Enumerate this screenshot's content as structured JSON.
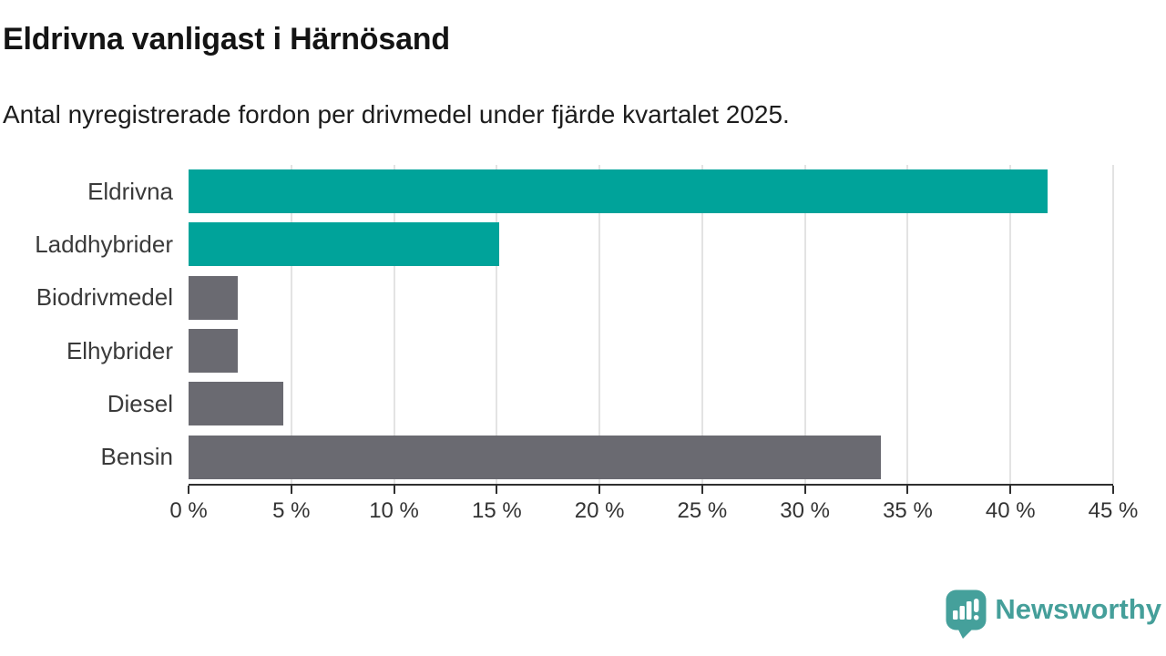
{
  "header": {
    "title": "Eldrivna vanligast i Härnösand",
    "subtitle": "Antal nyregistrerade fordon per drivmedel under fjärde kvartalet 2025."
  },
  "chart_data": {
    "type": "bar",
    "orientation": "horizontal",
    "title": "Eldrivna vanligast i Härnösand",
    "subtitle": "Antal nyregistrerade fordon per drivmedel under fjärde kvartalet 2025.",
    "categories": [
      "Eldrivna",
      "Laddhybrider",
      "Biodrivmedel",
      "Elhybrider",
      "Diesel",
      "Bensin"
    ],
    "values": [
      41.8,
      15.1,
      2.4,
      2.4,
      4.6,
      33.7
    ],
    "unit": "%",
    "xlim": [
      0,
      45
    ],
    "x_ticks": [
      0,
      5,
      10,
      15,
      20,
      25,
      30,
      35,
      40,
      45
    ],
    "x_tick_labels": [
      "0 %",
      "5 %",
      "10 %",
      "15 %",
      "20 %",
      "25 %",
      "30 %",
      "35 %",
      "40 %",
      "45 %"
    ],
    "grid": true,
    "legend": "none",
    "colors": {
      "highlight": "#00a39a",
      "default": "#6a6a71",
      "highlighted_categories": [
        "Eldrivna",
        "Laddhybrider"
      ]
    },
    "bar_colors": [
      "#00a39a",
      "#00a39a",
      "#6a6a71",
      "#6a6a71",
      "#6a6a71",
      "#6a6a71"
    ]
  },
  "footer": {
    "brand": "Newsworthy",
    "brand_color": "#459f9a",
    "logo_icon": "speech-bubble-bar-chart-icon"
  }
}
